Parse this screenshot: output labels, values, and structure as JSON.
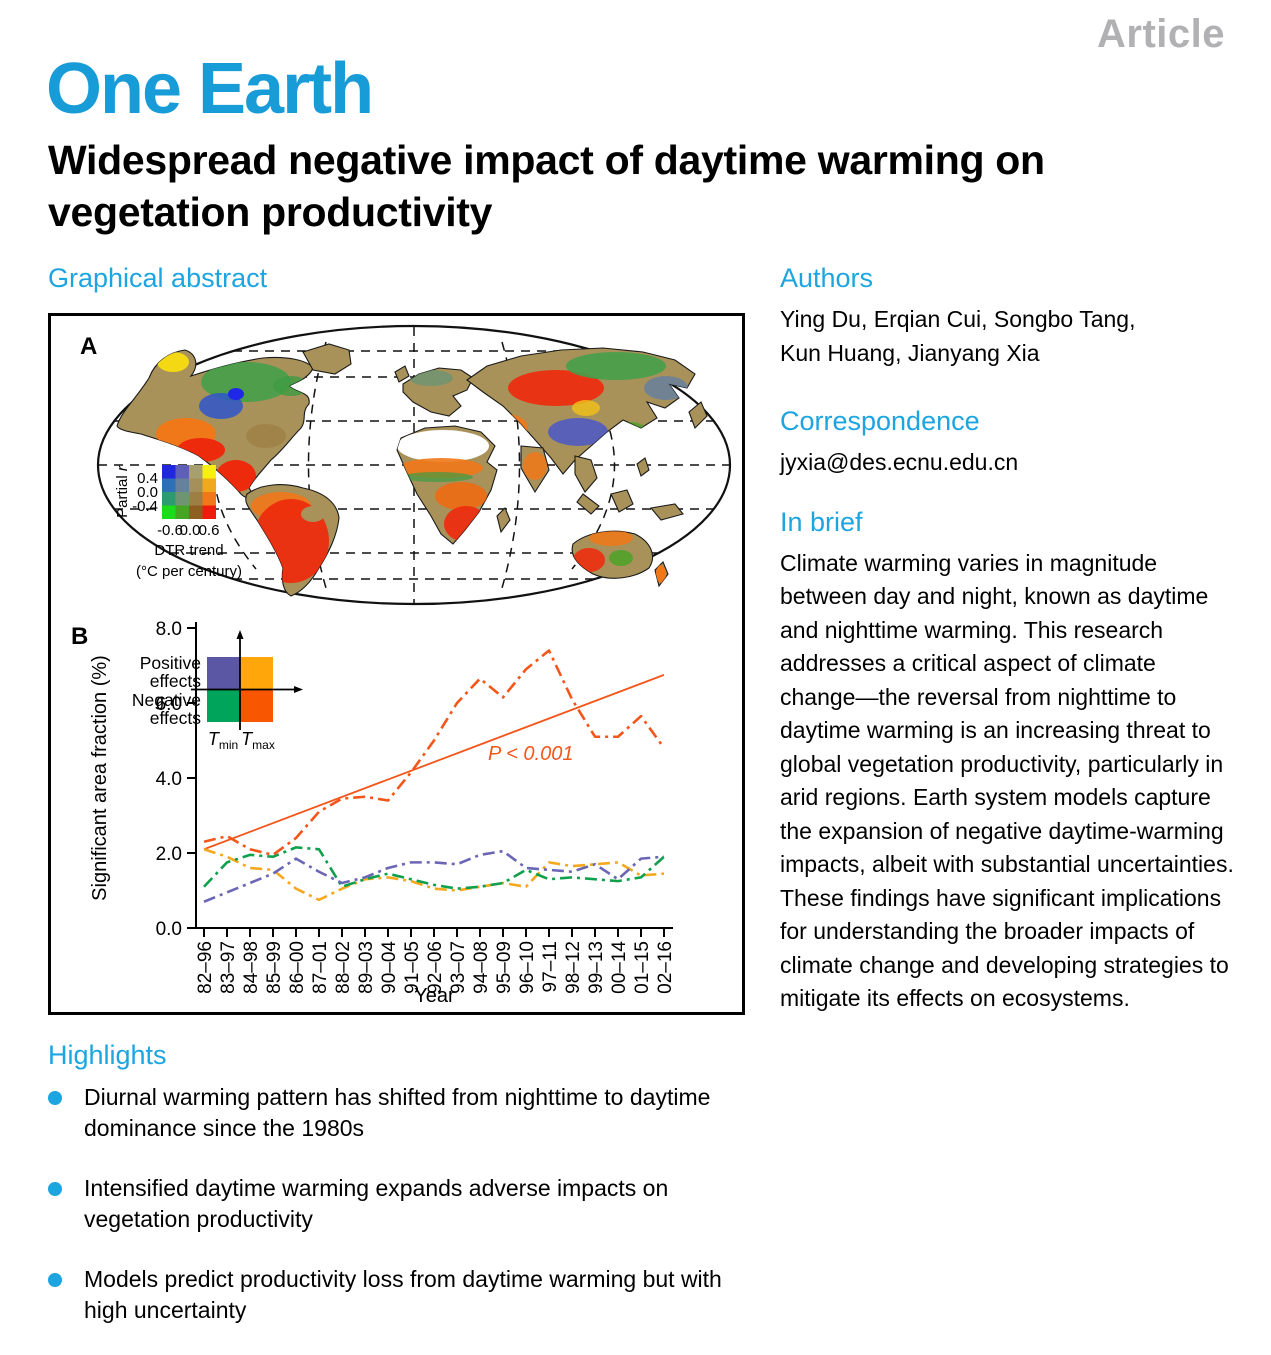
{
  "page": {
    "article_type": "Article",
    "journal": "One Earth",
    "title": "Widespread negative impact of daytime warming on vegetation productivity"
  },
  "left": {
    "graphical_abstract_heading": "Graphical abstract",
    "highlights_heading": "Highlights",
    "highlights": [
      "Diurnal warming pattern has shifted from nighttime to daytime dominance since the 1980s",
      "Intensified daytime warming expands adverse impacts on vegetation productivity",
      "Models predict productivity loss from daytime warming but with high uncertainty"
    ]
  },
  "right": {
    "authors_heading": "Authors",
    "authors_lines": [
      "Ying Du, Erqian Cui, Songbo Tang,",
      "Kun Huang, Jianyang Xia"
    ],
    "correspondence_heading": "Correspondence",
    "correspondence_email": "jyxia@des.ecnu.edu.cn",
    "in_brief_heading": "In brief",
    "in_brief_text": "Climate warming varies in magnitude between day and night, known as daytime and nighttime warming. This research addresses a critical aspect of climate change—the reversal from nighttime to daytime warming is an increasing threat to global vegetation productivity, particularly in arid regions. Earth system models capture the expansion of negative daytime-warming impacts, albeit with substantial uncertainties. These findings have significant implications for understanding the broader impacts of climate change and developing strategies to mitigate its effects on ecosystems."
  },
  "map_panel": {
    "label": "A",
    "legend": {
      "y_title_main": "Partial ",
      "y_title_sym": "r",
      "y_ticks": [
        "0.4",
        "0.0",
        "-0.4"
      ],
      "x_ticks": [
        "-0.6",
        "0.0",
        "0.6"
      ],
      "x_title": "DTR trend",
      "x_subtitle": "(°C per century)",
      "matrix": [
        [
          "#2026e0",
          "#5d5fb8",
          "#a89f6e",
          "#f6ef10"
        ],
        [
          "#2e6fb5",
          "#67809c",
          "#a5905c",
          "#f0a81c"
        ],
        [
          "#2d9a71",
          "#6f9472",
          "#9d7f44",
          "#f07818"
        ],
        [
          "#19dc1b",
          "#46a423",
          "#8f5f22",
          "#ee1c0c"
        ]
      ]
    }
  },
  "chart_data": {
    "type": "line",
    "panel_label": "B",
    "xlabel": "Year",
    "ylabel": "Significant area fraction (%)",
    "ylim": [
      0,
      8
    ],
    "y_ticks": [
      "0.0",
      "2.0",
      "4.0",
      "6.0",
      "8.0"
    ],
    "grid": false,
    "categories": [
      "82–96",
      "83–97",
      "84–98",
      "85–99",
      "86–00",
      "87–01",
      "88–02",
      "89–03",
      "90–04",
      "91–05",
      "92–06",
      "93–07",
      "94–08",
      "95–09",
      "96–10",
      "97–11",
      "98–12",
      "99–13",
      "00–14",
      "01–15",
      "02–16"
    ],
    "series": [
      {
        "name": "Tmax positive effects",
        "color": "#f5a81c",
        "style": "dashdot",
        "values": [
          2.1,
          1.9,
          1.6,
          1.55,
          1.05,
          0.75,
          1.05,
          1.3,
          1.35,
          1.25,
          1.05,
          1.0,
          1.1,
          1.2,
          1.1,
          1.75,
          1.65,
          1.7,
          1.75,
          1.4,
          1.45
        ]
      },
      {
        "name": "Tmin negative effects",
        "color": "#0fa04d",
        "style": "dashdot",
        "values": [
          1.1,
          1.75,
          1.95,
          1.9,
          2.15,
          2.1,
          1.1,
          1.3,
          1.45,
          1.3,
          1.15,
          1.05,
          1.1,
          1.2,
          1.55,
          1.3,
          1.35,
          1.3,
          1.25,
          1.35,
          1.9
        ]
      },
      {
        "name": "Tmin positive effects",
        "color": "#6b66b5",
        "style": "dashdot",
        "values": [
          0.7,
          0.95,
          1.2,
          1.45,
          1.85,
          1.5,
          1.2,
          1.35,
          1.6,
          1.75,
          1.75,
          1.7,
          1.95,
          2.05,
          1.6,
          1.55,
          1.5,
          1.7,
          1.3,
          1.85,
          1.9
        ]
      },
      {
        "name": "Tmax negative effects",
        "color": "#f4561a",
        "style": "dashdot",
        "values": [
          2.3,
          2.45,
          2.1,
          1.95,
          2.4,
          3.1,
          3.45,
          3.5,
          3.4,
          4.15,
          5.0,
          6.0,
          6.65,
          6.15,
          6.9,
          7.4,
          6.1,
          5.1,
          5.1,
          5.65,
          4.8
        ]
      }
    ],
    "trend": {
      "name": "Tmax negative trend",
      "color": "#f4561a",
      "start": 2.1,
      "end": 6.75
    },
    "annotation": "P < 0.001",
    "legend": {
      "positive": "Positive effects",
      "negative": "Negative effects",
      "t_symbol": "T",
      "tmin_sub": "min",
      "tmax_sub": "max",
      "colors": {
        "tl": "#5b57a5",
        "tr": "#ffa60a",
        "bl": "#00a45a",
        "br": "#f95602"
      }
    }
  }
}
